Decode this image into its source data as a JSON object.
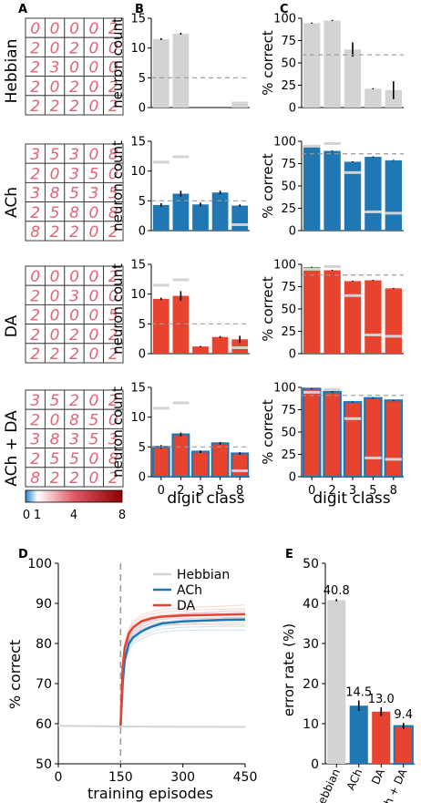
{
  "panel_letters": [
    "A",
    "B",
    "C",
    "D",
    "E"
  ],
  "row_labels": [
    "Hebbian",
    "ACh",
    "DA",
    "ACh + DA"
  ],
  "colors": {
    "hebbian": "#d3d3d3",
    "ach": "#1f77b4",
    "da": "#e8432f",
    "dash": "#999999"
  },
  "colorbar": {
    "ticks": [
      "0",
      "1",
      "4",
      "8"
    ],
    "colors": [
      "#2b83c6",
      "#ffffff",
      "#e05a66",
      "#8b0000"
    ]
  },
  "receptive_fields": {
    "Hebbian": [
      [
        "0",
        "0",
        "0",
        "0",
        "2"
      ],
      [
        "2",
        "0",
        "2",
        "0",
        "0"
      ],
      [
        "2",
        "3",
        "0",
        "0",
        "0"
      ],
      [
        "2",
        "0",
        "2",
        "0",
        "2"
      ],
      [
        "2",
        "2",
        "2",
        "0",
        "2"
      ]
    ],
    "ACh": [
      [
        "3",
        "5",
        "3",
        "0",
        "8"
      ],
      [
        "2",
        "0",
        "3",
        "5",
        "0"
      ],
      [
        "3",
        "8",
        "5",
        "3",
        "5"
      ],
      [
        "2",
        "5",
        "8",
        "0",
        "8"
      ],
      [
        "8",
        "2",
        "2",
        "0",
        "2"
      ]
    ],
    "DA": [
      [
        "0",
        "0",
        "0",
        "0",
        "2"
      ],
      [
        "2",
        "0",
        "3",
        "0",
        "0"
      ],
      [
        "2",
        "0",
        "0",
        "0",
        "5"
      ],
      [
        "2",
        "0",
        "2",
        "0",
        "2"
      ],
      [
        "2",
        "2",
        "2",
        "0",
        "2"
      ]
    ],
    "ACh + DA": [
      [
        "3",
        "5",
        "2",
        "0",
        "2"
      ],
      [
        "2",
        "0",
        "8",
        "5",
        "0"
      ],
      [
        "3",
        "8",
        "3",
        "5",
        "3"
      ],
      [
        "2",
        "5",
        "5",
        "0",
        "8"
      ],
      [
        "8",
        "2",
        "2",
        "0",
        "2"
      ]
    ]
  },
  "chart_data": [
    {
      "panel": "B",
      "type": "bar",
      "categories": [
        "0",
        "2",
        "3",
        "5",
        "8"
      ],
      "xlabel": "digit class",
      "ylabel": "neuron count",
      "ylim": [
        0,
        15
      ],
      "yticks": [
        0,
        5,
        10,
        15
      ],
      "rows": [
        {
          "name": "Hebbian",
          "values": [
            11.5,
            12.4,
            0,
            0,
            1.0
          ],
          "errors": [
            0.15,
            0.15,
            0,
            0,
            0
          ],
          "reference": 5,
          "hebbian_ref": null
        },
        {
          "name": "ACh",
          "values": [
            4.3,
            6.2,
            4.4,
            6.4,
            4.2
          ],
          "errors": [
            0.3,
            0.5,
            0.3,
            0.3,
            0.2
          ],
          "reference": 5,
          "hebbian_ref": [
            11.5,
            12.4,
            0,
            0,
            1.0
          ]
        },
        {
          "name": "DA",
          "values": [
            9.2,
            9.7,
            1.2,
            2.8,
            2.4
          ],
          "errors": [
            0.2,
            0.8,
            0.1,
            0.15,
            0.6
          ],
          "reference": 5,
          "hebbian_ref": [
            11.5,
            12.4,
            0,
            0,
            1.0
          ]
        },
        {
          "name": "ACh + DA",
          "values": [
            5.0,
            7.1,
            4.2,
            5.6,
            3.9
          ],
          "errors": [
            0.3,
            0.3,
            0.2,
            0.2,
            0.2
          ],
          "reference": 5,
          "hebbian_ref": [
            11.5,
            12.4,
            0,
            0,
            1.0
          ]
        }
      ]
    },
    {
      "panel": "C",
      "type": "bar",
      "categories": [
        "0",
        "2",
        "3",
        "5",
        "8"
      ],
      "xlabel": "digit class",
      "ylabel": "% correct",
      "ylim": [
        0,
        100
      ],
      "yticks": [
        0,
        25,
        50,
        75,
        100
      ],
      "rows": [
        {
          "name": "Hebbian",
          "values": [
            94.5,
            97.5,
            65,
            21,
            19.5
          ],
          "errors": [
            0.6,
            0.6,
            8,
            0.6,
            10
          ],
          "reference": 59,
          "hebbian_ref": null
        },
        {
          "name": "ACh",
          "values": [
            93.8,
            89.2,
            77.1,
            82.6,
            78.7
          ],
          "errors": [
            0.5,
            0.5,
            0.5,
            0.5,
            0.5
          ],
          "reference": 86,
          "hebbian_ref": [
            94.5,
            97.5,
            65,
            21,
            19.5
          ]
        },
        {
          "name": "DA",
          "values": [
            96.8,
            93.3,
            81.2,
            82.1,
            73.1
          ],
          "errors": [
            0.5,
            0.5,
            0.5,
            0.5,
            0.5
          ],
          "reference": 88,
          "hebbian_ref": [
            94.5,
            97.5,
            65,
            21,
            19.5
          ]
        },
        {
          "name": "ACh + DA",
          "values": [
            98.5,
            94.8,
            83.5,
            88.0,
            85.4
          ],
          "errors": [
            0.5,
            0.5,
            0.5,
            0.5,
            0.5
          ],
          "reference": 91,
          "hebbian_ref": [
            94.5,
            97.5,
            65,
            21,
            19.5
          ]
        }
      ]
    },
    {
      "panel": "D",
      "type": "line",
      "xlabel": "training episodes",
      "ylabel": "% correct",
      "xlim": [
        0,
        450
      ],
      "ylim": [
        50,
        100
      ],
      "xticks": [
        0,
        150,
        300,
        450
      ],
      "yticks": [
        50,
        60,
        70,
        80,
        90,
        100
      ],
      "vline": 150,
      "legend_position": "top-right",
      "series": [
        {
          "name": "Hebbian",
          "x": [
            0,
            150,
            450
          ],
          "y": [
            59.5,
            59.3,
            59.2
          ]
        },
        {
          "name": "ACh",
          "x": [
            150,
            155,
            160,
            170,
            180,
            200,
            225,
            250,
            300,
            350,
            400,
            450
          ],
          "y": [
            59.5,
            70,
            76,
            80,
            81.5,
            83,
            84.2,
            85,
            85.5,
            85.7,
            85.9,
            86
          ]
        },
        {
          "name": "DA",
          "x": [
            150,
            155,
            160,
            170,
            180,
            200,
            225,
            250,
            300,
            350,
            400,
            450
          ],
          "y": [
            59.5,
            74,
            79,
            82.5,
            84,
            85.5,
            86.3,
            86.7,
            87.0,
            87.1,
            87.2,
            87.3
          ]
        }
      ]
    },
    {
      "panel": "E",
      "type": "bar",
      "categories": [
        "Hebbian",
        "ACh",
        "DA",
        "ACh + DA"
      ],
      "ylabel": "error rate (%)",
      "ylim": [
        0,
        50
      ],
      "yticks": [
        0,
        10,
        20,
        30,
        40,
        50
      ],
      "values": [
        40.8,
        14.5,
        13.0,
        9.4
      ],
      "errors": [
        0.3,
        1.3,
        1.1,
        0.8
      ],
      "data_labels": [
        "40.8",
        "14.5",
        "13.0",
        "9.4"
      ]
    }
  ]
}
